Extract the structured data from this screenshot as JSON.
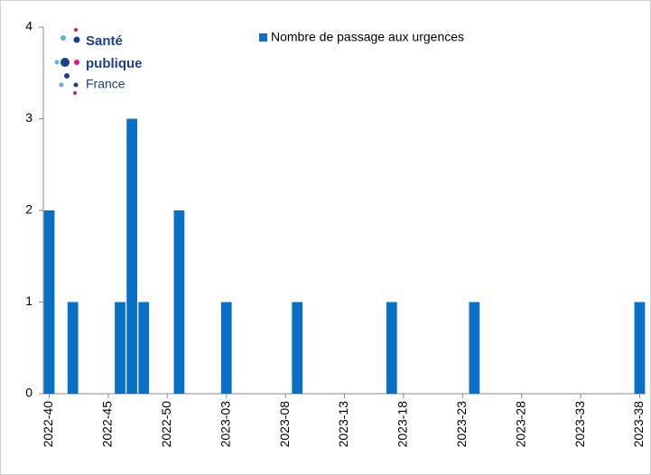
{
  "chart_data": {
    "type": "bar",
    "legend": "Nombre de passage aux urgences",
    "color": "#0a70c6",
    "categories": [
      "2022-40",
      null,
      null,
      null,
      null,
      "2022-45",
      null,
      null,
      null,
      null,
      "2022-50",
      null,
      null,
      null,
      null,
      "2023-03",
      null,
      null,
      null,
      null,
      "2023-08",
      null,
      null,
      null,
      null,
      "2023-13",
      null,
      null,
      null,
      null,
      "2023-18",
      null,
      null,
      null,
      null,
      "2023-23",
      null,
      null,
      null,
      null,
      "2023-28",
      null,
      null,
      null,
      null,
      "2023-33",
      null,
      null,
      null,
      null,
      "2023-38"
    ],
    "values": [
      2,
      0,
      1,
      0,
      0,
      0,
      1,
      3,
      1,
      0,
      0,
      2,
      0,
      0,
      0,
      1,
      0,
      0,
      0,
      0,
      0,
      1,
      0,
      0,
      0,
      0,
      0,
      0,
      0,
      1,
      0,
      0,
      0,
      0,
      0,
      0,
      1,
      0,
      0,
      0,
      0,
      0,
      0,
      0,
      0,
      0,
      0,
      0,
      0,
      0,
      1
    ],
    "ylim": [
      0,
      4
    ],
    "yticks": [
      0,
      1,
      2,
      3,
      4
    ],
    "grid": false
  },
  "logo": {
    "line1": "Santé",
    "line2": "publique",
    "line3": "France"
  }
}
